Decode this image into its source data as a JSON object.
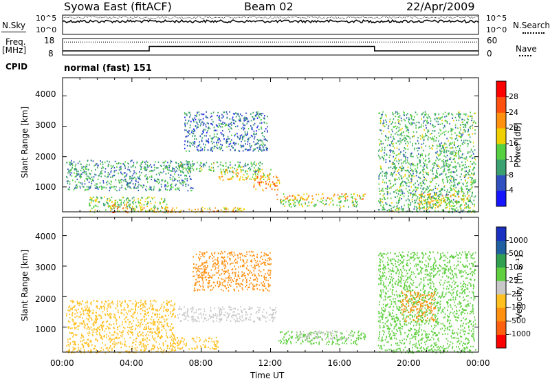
{
  "header": {
    "title": "Syowa East (fitACF)",
    "beam": "Beam 02",
    "date": "22/Apr/2009"
  },
  "left_labels": {
    "nsky": "N.Sky",
    "freq_line1": "Freq.",
    "freq_line2": "[MHz]",
    "cpid": "CPID"
  },
  "right_labels": {
    "nsearch": "N.Search",
    "nave": "Nave"
  },
  "cpid_text": "normal (fast) 151",
  "chart_data": [
    {
      "type": "line",
      "name": "noise-panel",
      "left_axis": {
        "ticks": [
          "10^5",
          "10^0"
        ]
      },
      "right_axis": {
        "ticks": [
          "10^5",
          "10^0"
        ]
      },
      "x": [
        0,
        24
      ]
    },
    {
      "type": "line",
      "name": "frequency-nave-panel",
      "left_axis": {
        "ticks": [
          "18",
          "8"
        ],
        "range": [
          8,
          18
        ]
      },
      "right_axis": {
        "ticks": [
          "60",
          "0"
        ],
        "range": [
          0,
          60
        ]
      },
      "frequency_steps": [
        {
          "from": 0,
          "to": 5,
          "value": 10.5
        },
        {
          "from": 5,
          "to": 18,
          "value": 13.2
        },
        {
          "from": 18,
          "to": 24,
          "value": 10.5
        }
      ],
      "nave_value": 47
    },
    {
      "type": "heatmap",
      "name": "power-panel",
      "xlabel": "",
      "ylabel": "Slant Range [km]",
      "xlim": [
        0,
        24
      ],
      "ylim": [
        180,
        4600
      ],
      "yticks": [
        "1000",
        "2000",
        "3000",
        "4000"
      ],
      "colorbar": {
        "label": "Power [dB]",
        "ticks": [
          "4",
          "8",
          "12",
          "16",
          "20",
          "24",
          "28"
        ],
        "colors": [
          "#1515ff",
          "#3050c0",
          "#3aa070",
          "#55d040",
          "#f0d000",
          "#ff9010",
          "#ff5010",
          "#ff0000"
        ]
      },
      "regions": [
        {
          "t0": 0.2,
          "t1": 7.5,
          "r0": 900,
          "r1": 1900,
          "value": 10
        },
        {
          "t0": 1.5,
          "t1": 6.0,
          "r0": 180,
          "r1": 700,
          "value": 14
        },
        {
          "t0": 2.8,
          "t1": 3.8,
          "r0": 180,
          "r1": 450,
          "value": 24
        },
        {
          "t0": 4.2,
          "t1": 10.5,
          "r0": 180,
          "r1": 350,
          "value": 20
        },
        {
          "t0": 6.5,
          "t1": 11.5,
          "r0": 1500,
          "r1": 1850,
          "value": 12
        },
        {
          "t0": 7.0,
          "t1": 11.8,
          "r0": 2200,
          "r1": 3500,
          "value": 8
        },
        {
          "t0": 9.0,
          "t1": 12.0,
          "r0": 1250,
          "r1": 1600,
          "value": 18
        },
        {
          "t0": 11.0,
          "t1": 12.5,
          "r0": 900,
          "r1": 1400,
          "value": 22
        },
        {
          "t0": 12.3,
          "t1": 17.5,
          "r0": 600,
          "r1": 800,
          "value": 20
        },
        {
          "t0": 12.5,
          "t1": 17.0,
          "r0": 350,
          "r1": 600,
          "value": 14
        },
        {
          "t0": 18.2,
          "t1": 23.8,
          "r0": 180,
          "r1": 3500,
          "value": 12
        },
        {
          "t0": 20.5,
          "t1": 23.5,
          "r0": 300,
          "r1": 800,
          "value": 18
        }
      ]
    },
    {
      "type": "heatmap",
      "name": "velocity-panel",
      "xlabel": "Time UT",
      "ylabel": "Slant Range [km]",
      "xlim": [
        0,
        24
      ],
      "ylim": [
        180,
        4600
      ],
      "xticks": [
        "00:00",
        "04:00",
        "08:00",
        "12:00",
        "16:00",
        "20:00",
        "00:00"
      ],
      "yticks": [
        "1000",
        "2000",
        "3000",
        "4000"
      ],
      "colorbar": {
        "label": "Velocity [m s⁻¹]",
        "ticks": [
          "1000",
          "500",
          "100",
          "25",
          "-25",
          "-100",
          "-500",
          "-1000"
        ],
        "colors": [
          "#1a30c0",
          "#2060a0",
          "#30a050",
          "#60d040",
          "#c8c8c8",
          "#ffc020",
          "#ff9010",
          "#ff6010",
          "#ff0000"
        ]
      },
      "regions": [
        {
          "t0": 0.2,
          "t1": 6.5,
          "r0": 180,
          "r1": 1900,
          "value": -60
        },
        {
          "t0": 6.5,
          "t1": 12.3,
          "r0": 1200,
          "r1": 1700,
          "value": 0
        },
        {
          "t0": 7.5,
          "t1": 12.0,
          "r0": 2200,
          "r1": 3500,
          "value": -200
        },
        {
          "t0": 6.0,
          "t1": 9.0,
          "r0": 300,
          "r1": 700,
          "value": -80
        },
        {
          "t0": 12.4,
          "t1": 17.5,
          "r0": 450,
          "r1": 900,
          "value": 60
        },
        {
          "t0": 13.5,
          "t1": 16.5,
          "r0": 600,
          "r1": 900,
          "value": 0
        },
        {
          "t0": 18.2,
          "t1": 23.8,
          "r0": 180,
          "r1": 3500,
          "value": 60
        },
        {
          "t0": 19.5,
          "t1": 21.5,
          "r0": 1200,
          "r1": 2200,
          "value": -200
        }
      ]
    }
  ],
  "colors": {
    "frame": "#000000",
    "grid": "#000000",
    "background": "#ffffff"
  }
}
